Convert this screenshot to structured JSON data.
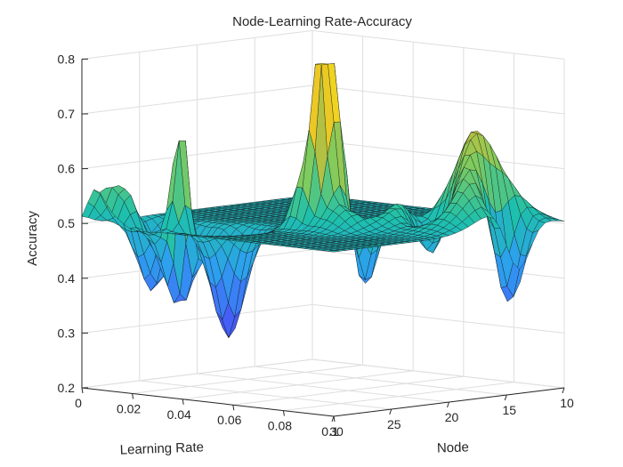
{
  "chart_data": {
    "type": "surface",
    "title": "Node-Learning Rate-Accuracy",
    "xlabel": "Learning Rate",
    "ylabel": "Node",
    "zlabel": "Accuracy",
    "x_ticks": [
      "0",
      "0.02",
      "0.04",
      "0.06",
      "0.08",
      "0.1"
    ],
    "y_ticks": [
      "10",
      "15",
      "20",
      "25",
      "30"
    ],
    "z_ticks": [
      "0.2",
      "0.3",
      "0.4",
      "0.5",
      "0.6",
      "0.7",
      "0.8"
    ],
    "xlim": [
      0,
      0.1
    ],
    "ylim": [
      10,
      30
    ],
    "zlim": [
      0.2,
      0.8
    ],
    "grid": true,
    "colormap": [
      "#3e26a8",
      "#4562fa",
      "#2da0ee",
      "#1ec0ac",
      "#82cb5c",
      "#e6b72a",
      "#f9fb15"
    ],
    "baseline": 0.5,
    "features": [
      {
        "x": 0.03,
        "y": 28,
        "z": 0.75,
        "w": 0.003,
        "h": 0.8
      },
      {
        "x": 0.058,
        "y": 22,
        "z": 0.79,
        "w": 0.003,
        "h": 0.8
      },
      {
        "x": 0.06,
        "y": 21,
        "z": 0.73,
        "w": 0.004,
        "h": 1.0
      },
      {
        "x": 0.055,
        "y": 23,
        "z": 0.58,
        "w": 0.004,
        "h": 0.8
      },
      {
        "x": 0.085,
        "y": 15,
        "z": 0.72,
        "w": 0.012,
        "h": 3.2
      },
      {
        "x": 0.075,
        "y": 18,
        "z": 0.6,
        "w": 0.008,
        "h": 2.0
      },
      {
        "x": 0.065,
        "y": 21,
        "z": 0.6,
        "w": 0.008,
        "h": 2.0
      },
      {
        "x": 0.005,
        "y": 30,
        "z": 0.56,
        "w": 0.004,
        "h": 1.0
      },
      {
        "x": 0.01,
        "y": 29,
        "z": 0.57,
        "w": 0.004,
        "h": 1.0
      },
      {
        "x": 0.015,
        "y": 29,
        "z": 0.54,
        "w": 0.003,
        "h": 0.8
      },
      {
        "x": 0.068,
        "y": 16,
        "z": 0.48,
        "w": 0.008,
        "h": 2.5
      },
      {
        "x": 0.01,
        "y": 26,
        "z": 0.37,
        "w": 0.005,
        "h": 1.5
      },
      {
        "x": 0.025,
        "y": 27,
        "z": 0.35,
        "w": 0.006,
        "h": 1.5
      },
      {
        "x": 0.04,
        "y": 26,
        "z": 0.3,
        "w": 0.006,
        "h": 1.5
      },
      {
        "x": 0.065,
        "y": 20,
        "z": 0.3,
        "w": 0.006,
        "h": 1.5
      },
      {
        "x": 0.08,
        "y": 17,
        "z": 0.28,
        "w": 0.008,
        "h": 2.0
      },
      {
        "x": 0.095,
        "y": 14,
        "z": 0.27,
        "w": 0.006,
        "h": 1.5
      }
    ]
  }
}
